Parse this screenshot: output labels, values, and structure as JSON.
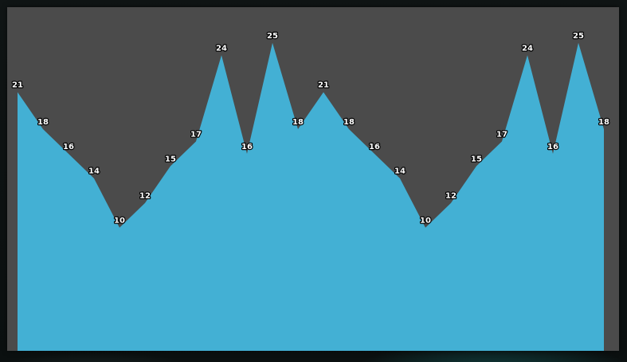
{
  "chart_data": {
    "type": "area",
    "title": "",
    "xlabel": "",
    "ylabel": "",
    "x": [
      1,
      2,
      3,
      4,
      5,
      6,
      7,
      8,
      9,
      10,
      11,
      12,
      13,
      14,
      15,
      16,
      17,
      18,
      19,
      20,
      21,
      22,
      23,
      24
    ],
    "series": [
      {
        "values": [
          21,
          18,
          16,
          14,
          10,
          12,
          15,
          17,
          24,
          16,
          25,
          18,
          21,
          18,
          16,
          14,
          10,
          12,
          15,
          17,
          24,
          16,
          25,
          18
        ],
        "color": "#43b0d4"
      }
    ],
    "ylim": [
      0,
      27.9
    ],
    "show_axes": false,
    "grid": false,
    "data_labels": true,
    "background": "#4b4b4b"
  }
}
